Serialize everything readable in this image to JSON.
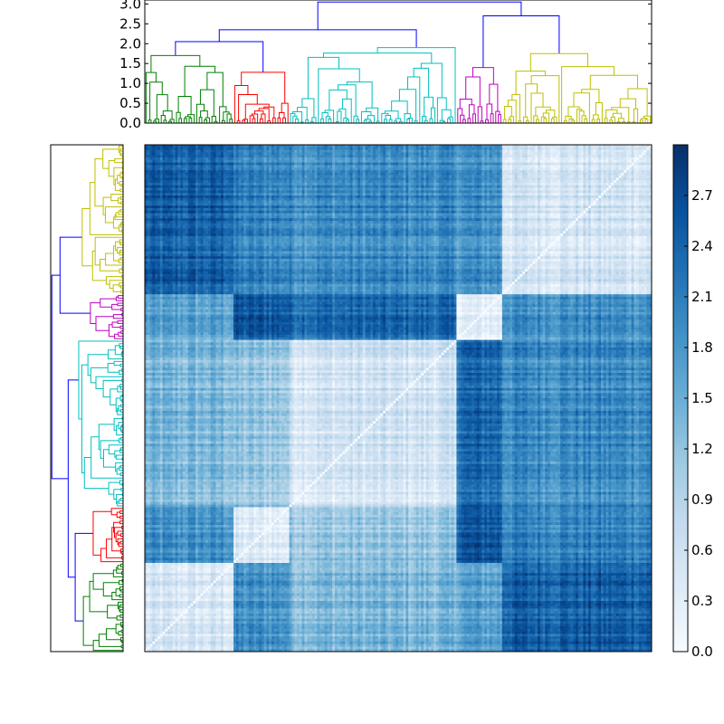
{
  "chart_data": [
    {
      "type": "heatmap",
      "title": "",
      "xlabel": "",
      "ylabel": "",
      "n": 200,
      "cluster_order": [
        "green",
        "red",
        "cyan",
        "magenta",
        "yellow"
      ],
      "cluster_sizes": [
        35,
        22,
        66,
        18,
        59
      ],
      "block_means": [
        [
          0.45,
          1.85,
          1.35,
          1.65,
          2.45
        ],
        [
          1.85,
          0.35,
          1.15,
          2.55,
          2.05
        ],
        [
          1.35,
          1.15,
          0.55,
          2.35,
          1.95
        ],
        [
          1.65,
          2.55,
          2.35,
          0.3,
          1.9
        ],
        [
          2.45,
          2.05,
          1.95,
          1.9,
          0.55
        ]
      ],
      "diagonal_value": 0.0,
      "colormap": [
        "#f7fbff",
        "#deebf7",
        "#c6dbef",
        "#9ecae1",
        "#6baed6",
        "#4292c6",
        "#2171b5",
        "#08519c",
        "#08306b"
      ]
    },
    {
      "type": "colorbar",
      "range": [
        0.0,
        3.0
      ],
      "tick_labels": [
        "0.0",
        "0.3",
        "0.6",
        "0.9",
        "1.2",
        "1.5",
        "1.8",
        "2.1",
        "2.4",
        "2.7"
      ]
    },
    {
      "type": "dendrogram",
      "orientation": "top",
      "ylim": [
        0.0,
        3.1
      ],
      "tick_labels": [
        "0.0",
        "0.5",
        "1.0",
        "1.5",
        "2.0",
        "2.5",
        "3.0"
      ],
      "clusters": [
        {
          "color": "#008000",
          "top_height": 1.7
        },
        {
          "color": "#ff0000",
          "top_height": 1.28
        },
        {
          "color": "#00bfbf",
          "top_height": 1.9
        },
        {
          "color": "#bf00bf",
          "top_height": 1.4
        },
        {
          "color": "#bfbf00",
          "top_height": 1.75
        }
      ],
      "link_color": "#0000ff",
      "link_heights": {
        "green_red_cyan": 2.05,
        "gr_cyan": 2.35,
        "magenta_yellow": 2.7,
        "root": 3.05
      }
    },
    {
      "type": "dendrogram",
      "orientation": "left"
    }
  ]
}
